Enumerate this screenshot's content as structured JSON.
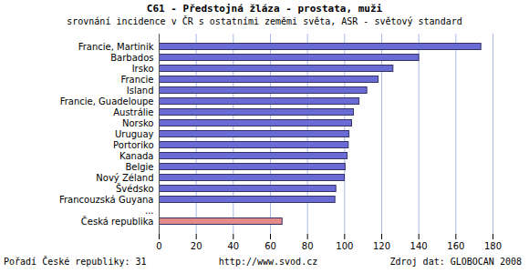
{
  "chart_data": {
    "type": "bar",
    "orientation": "horizontal",
    "title": "C61 - Předstojná žláza - prostata, muži",
    "subtitle": "srovnání incidence v ČR s ostatními zeměmi světa, ASR - světový standard",
    "categories": [
      "Francie, Martinik",
      "Barbados",
      "Irsko",
      "Francie",
      "Island",
      "Francie, Guadeloupe",
      "Austrálie",
      "Norsko",
      "Uruguay",
      "Portoriko",
      "Kanada",
      "Belgie",
      "Nový Zéland",
      "Švédsko",
      "Francouzská Guyana",
      "...",
      "Česká republika"
    ],
    "values": [
      173.7,
      140.2,
      126.3,
      118.3,
      112.2,
      108.0,
      105.0,
      104.0,
      102.6,
      102.2,
      101.6,
      100.5,
      100.1,
      95.5,
      95.0,
      null,
      66.5
    ],
    "colors": [
      "#6b6bd6",
      "#6b6bd6",
      "#6b6bd6",
      "#6b6bd6",
      "#6b6bd6",
      "#6b6bd6",
      "#6b6bd6",
      "#6b6bd6",
      "#6b6bd6",
      "#6b6bd6",
      "#6b6bd6",
      "#6b6bd6",
      "#6b6bd6",
      "#6b6bd6",
      "#6b6bd6",
      "#6b6bd6",
      "#e58a8a"
    ],
    "xlim": [
      0,
      180
    ],
    "xticks": [
      0,
      20,
      40,
      60,
      80,
      100,
      120,
      140,
      160,
      180
    ],
    "grid": true,
    "notes": [
      "Pořadí České republiky: 31",
      "http://www.svod.cz",
      "Zdroj dat: GLOBOCAN 2008"
    ]
  }
}
